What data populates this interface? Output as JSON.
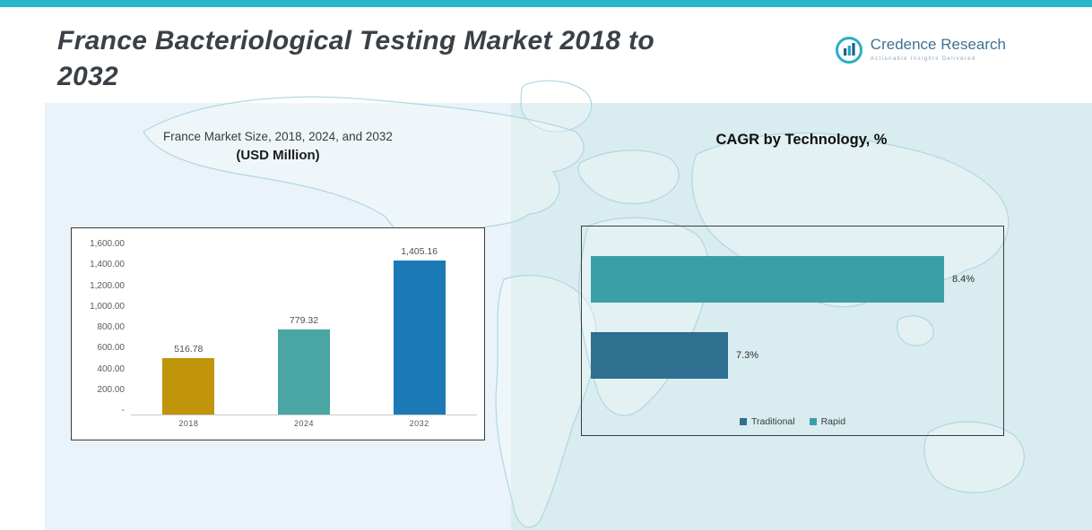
{
  "page": {
    "title_line1": "France Bacteriological Testing Market 2018 to",
    "title_line2": "2032",
    "accent_color": "#29b7c9"
  },
  "logo": {
    "name": "Credence Research",
    "tagline": "Actionable Insights Delivered",
    "icon": "bar-chart-circle-icon"
  },
  "chart_data": [
    {
      "type": "bar",
      "title": "France Market Size, 2018, 2024, and 2032",
      "subtitle": "(USD Million)",
      "categories": [
        "2018",
        "2024",
        "2032"
      ],
      "values": [
        516.78,
        779.32,
        1405.16
      ],
      "labels": [
        "516.78",
        "779.32",
        "1,405.16"
      ],
      "bar_colors": [
        "#c0940b",
        "#4aa5a5",
        "#1b7ab5"
      ],
      "xlabel": "",
      "ylabel": "",
      "ylim": [
        0,
        1600
      ],
      "ytick_step": 200,
      "ytick_labels": [
        "1,600.00",
        "1,400.00",
        "1,200.00",
        "1,000.00",
        "800.00",
        "600.00",
        "400.00",
        "200.00",
        "-"
      ],
      "grid": false,
      "legend_position": "none"
    },
    {
      "type": "bar",
      "orientation": "horizontal",
      "title": "CAGR by Technology, %",
      "series": [
        {
          "name": "Rapid",
          "value": 8.4,
          "label": "8.4%",
          "color": "#3b9fa5"
        },
        {
          "name": "Traditional",
          "value": 7.3,
          "label": "7.3%",
          "color": "#2f6f8f"
        }
      ],
      "xlim": [
        6.6,
        8.7
      ],
      "grid": false,
      "legend_position": "bottom",
      "legend": [
        {
          "label": "Traditional",
          "color": "#2f6f8f"
        },
        {
          "label": "Rapid",
          "color": "#3b9fa5"
        }
      ]
    }
  ]
}
